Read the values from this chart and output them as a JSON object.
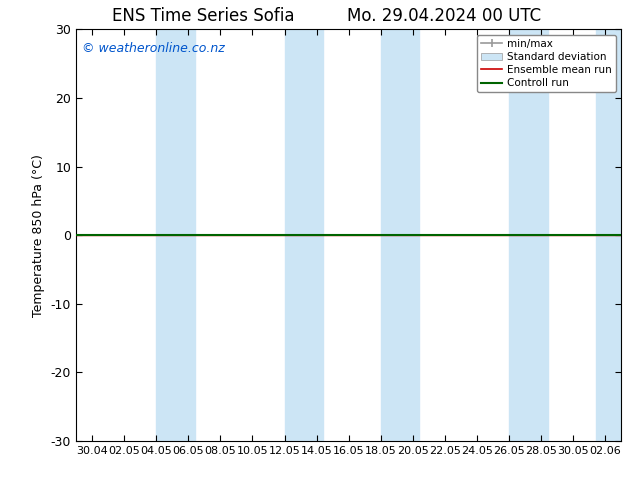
{
  "title_left": "ENS Time Series Sofia",
  "title_right": "Mo. 29.04.2024 00 UTC",
  "ylabel": "Temperature 850 hPa (°C)",
  "watermark": "© weatheronline.co.nz",
  "watermark_color": "#0055cc",
  "ylim": [
    -30,
    30
  ],
  "yticks": [
    -30,
    -20,
    -10,
    0,
    10,
    20,
    30
  ],
  "xtick_labels": [
    "30.04",
    "02.05",
    "04.05",
    "06.05",
    "08.05",
    "10.05",
    "12.05",
    "14.05",
    "16.05",
    "18.05",
    "20.05",
    "22.05",
    "24.05",
    "26.05",
    "28.05",
    "30.05",
    "02.06"
  ],
  "background_color": "#ffffff",
  "plot_bg_color": "#ffffff",
  "shaded_band_color": "#cce5f5",
  "zero_line_color": "#000000",
  "control_run_color": "#006400",
  "ensemble_mean_color": "#cc0000",
  "legend_minmax_color": "#999999",
  "legend_std_color": "#aabbcc",
  "legend_ensemble_color": "#cc0000",
  "legend_control_color": "#006400",
  "n_xticks": 17,
  "shaded_ranges": [
    [
      2.0,
      3.2
    ],
    [
      6.0,
      7.2
    ],
    [
      9.0,
      10.2
    ],
    [
      13.0,
      14.2
    ],
    [
      15.7,
      16.5
    ]
  ]
}
